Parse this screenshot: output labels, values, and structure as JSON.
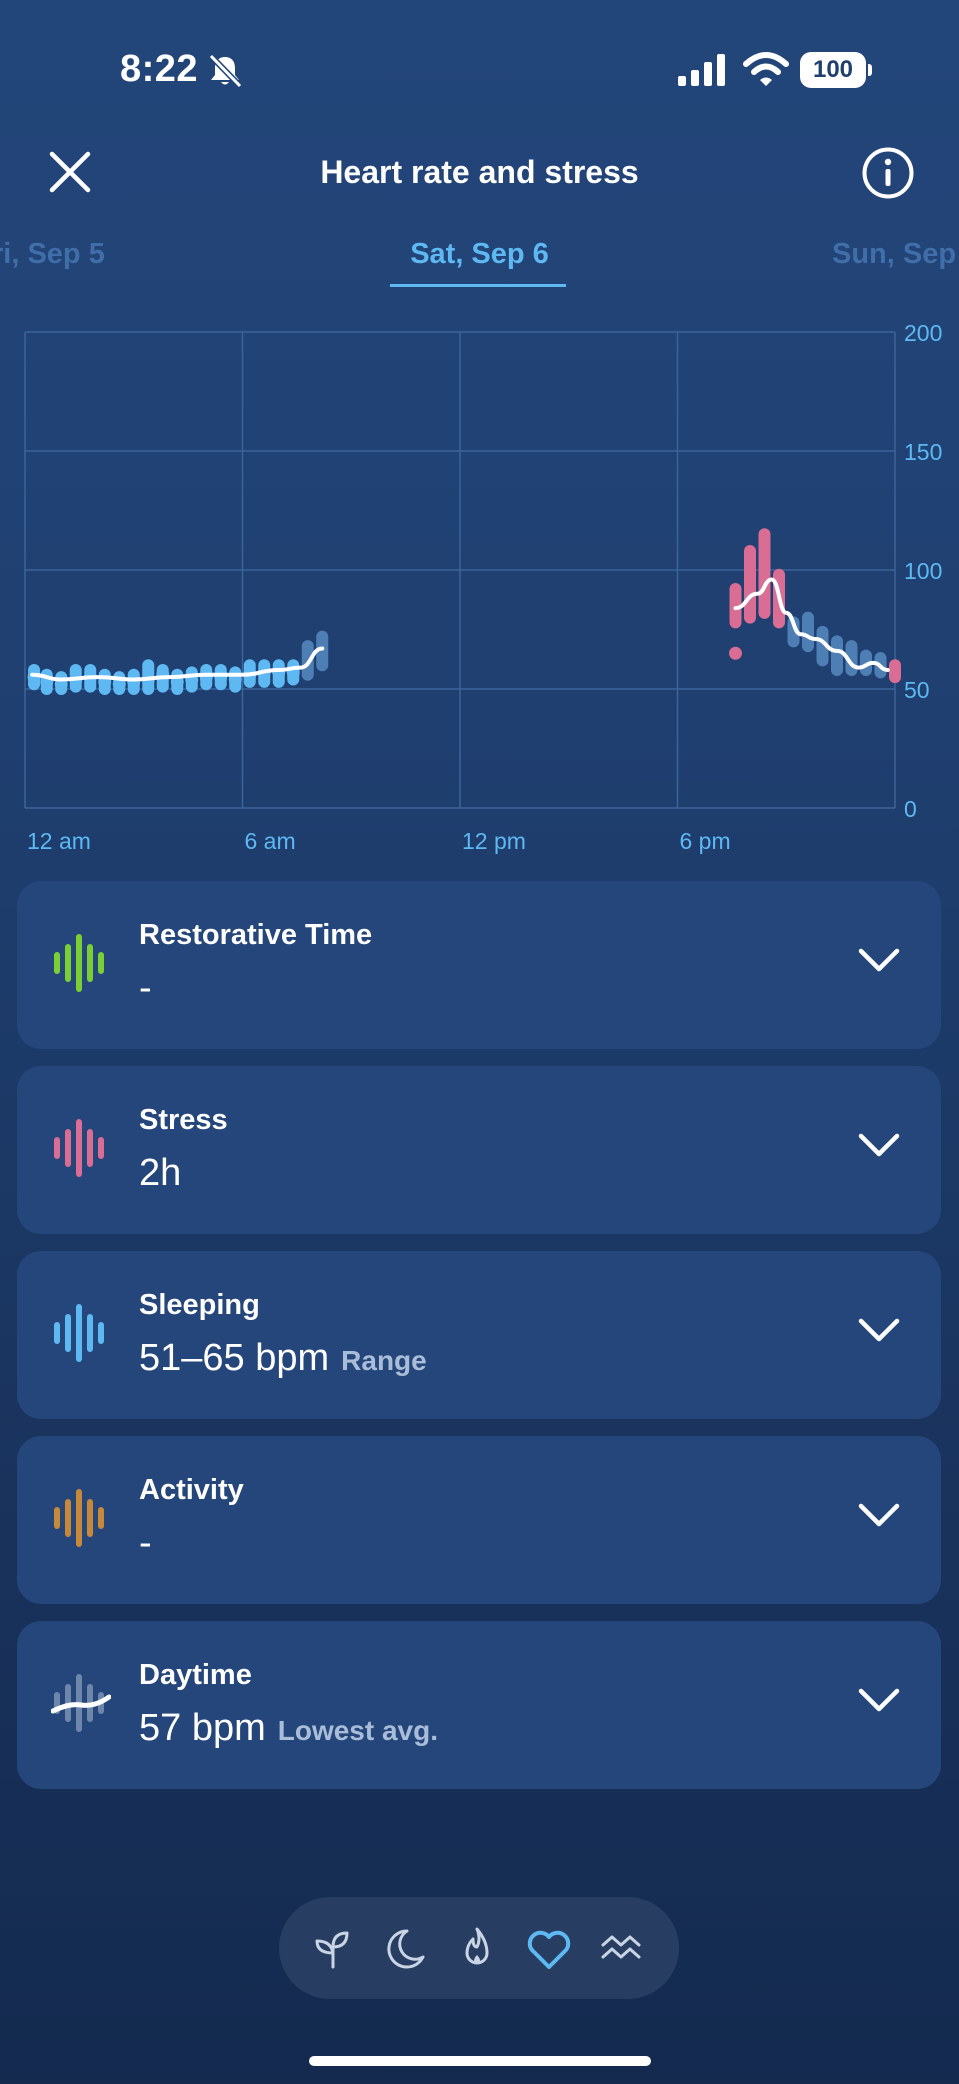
{
  "status": {
    "time": "8:22",
    "battery": "100"
  },
  "header": {
    "title": "Heart rate and stress"
  },
  "dates": {
    "prev": "ri, Sep 5",
    "current": "Sat, Sep 6",
    "next": "Sun, Sep"
  },
  "chart_data": {
    "type": "scatter",
    "x_ticks": [
      "12 am",
      "6 am",
      "12 pm",
      "6 pm"
    ],
    "y_ticks": [
      "0",
      "50",
      "100",
      "150",
      "200"
    ],
    "ylim": [
      0,
      200
    ],
    "xlim_hours": [
      0,
      24
    ],
    "series": [
      {
        "color": "#5eb8f2",
        "points": [
          [
            0.25,
            55
          ],
          [
            0.6,
            53
          ],
          [
            1.0,
            52
          ],
          [
            1.4,
            54
          ],
          [
            1.8,
            55
          ],
          [
            2.2,
            53
          ],
          [
            2.6,
            52
          ],
          [
            3.0,
            53
          ],
          [
            3.4,
            54
          ],
          [
            3.8,
            56
          ],
          [
            4.2,
            53
          ],
          [
            4.6,
            54
          ],
          [
            5.0,
            55
          ],
          [
            5.4,
            55
          ],
          [
            5.8,
            54
          ],
          [
            6.2,
            56
          ],
          [
            6.6,
            57
          ],
          [
            7.0,
            57
          ],
          [
            7.4,
            57
          ]
        ],
        "ranges": [
          [
            0.25,
            52,
            58
          ],
          [
            0.6,
            50,
            56
          ],
          [
            1.0,
            50,
            55
          ],
          [
            1.4,
            51,
            58
          ],
          [
            1.8,
            51,
            58
          ],
          [
            2.2,
            50,
            56
          ],
          [
            2.6,
            50,
            55
          ],
          [
            3.0,
            50,
            56
          ],
          [
            3.4,
            50,
            60
          ],
          [
            3.8,
            51,
            58
          ],
          [
            4.2,
            50,
            56
          ],
          [
            4.6,
            51,
            57
          ],
          [
            5.0,
            52,
            58
          ],
          [
            5.4,
            52,
            58
          ],
          [
            5.8,
            51,
            57
          ],
          [
            6.2,
            53,
            60
          ],
          [
            6.6,
            53,
            60
          ],
          [
            7.0,
            53,
            60
          ],
          [
            7.4,
            54,
            60
          ]
        ]
      },
      {
        "color": "#4d7fb5",
        "ranges": [
          [
            7.8,
            56,
            68
          ],
          [
            8.2,
            60,
            72
          ],
          [
            21.2,
            70,
            78
          ],
          [
            21.6,
            68,
            80
          ],
          [
            22.0,
            62,
            74
          ],
          [
            22.4,
            58,
            70
          ],
          [
            22.8,
            58,
            68
          ],
          [
            23.2,
            58,
            64
          ],
          [
            23.6,
            57,
            63
          ]
        ]
      },
      {
        "color": "#d96d93",
        "ranges": [
          [
            19.6,
            78,
            92
          ],
          [
            20.0,
            80,
            108
          ],
          [
            20.4,
            82,
            115
          ],
          [
            20.8,
            78,
            98
          ],
          [
            24.0,
            55,
            60
          ]
        ],
        "points": [
          [
            19.6,
            65
          ]
        ]
      }
    ],
    "trend": [
      [
        0.2,
        56
      ],
      [
        1.0,
        54
      ],
      [
        2.0,
        55
      ],
      [
        3.0,
        54
      ],
      [
        4.0,
        55
      ],
      [
        5.0,
        56
      ],
      [
        6.0,
        56
      ],
      [
        7.0,
        58
      ],
      [
        7.6,
        59
      ],
      [
        8.2,
        67
      ],
      [
        19.6,
        84
      ],
      [
        20.2,
        90
      ],
      [
        20.6,
        96
      ],
      [
        21.0,
        82
      ],
      [
        21.4,
        73
      ],
      [
        21.8,
        71
      ],
      [
        22.4,
        66
      ],
      [
        23.0,
        59
      ],
      [
        23.4,
        61
      ],
      [
        23.8,
        58
      ]
    ]
  },
  "cards": [
    {
      "title": "Restorative Time",
      "value": "-",
      "sub": "",
      "color": "#7bcf35"
    },
    {
      "title": "Stress",
      "value": "2h",
      "sub": "",
      "color": "#d96d93"
    },
    {
      "title": "Sleeping",
      "value": "51–65 bpm",
      "sub": "Range",
      "color": "#5eb8f2"
    },
    {
      "title": "Activity",
      "value": "-",
      "sub": "",
      "color": "#c8883a"
    },
    {
      "title": "Daytime",
      "value": "57 bpm",
      "sub": "Lowest avg.",
      "color": "#8fa3c4"
    }
  ],
  "nav": {
    "items": [
      "sprout-icon",
      "moon-icon",
      "flame-icon",
      "heart-icon",
      "waves-icon"
    ],
    "active": "heart-icon"
  }
}
